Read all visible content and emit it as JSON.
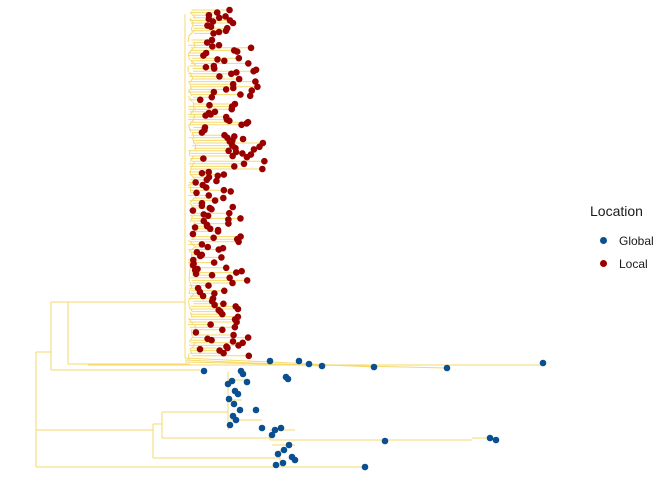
{
  "colors": {
    "branch": "#F5D96A",
    "global": "#0A4F91",
    "local": "#990000"
  },
  "legend": {
    "title": "Location",
    "items": [
      {
        "label": "Global",
        "color": "#0A4F91"
      },
      {
        "label": "Local",
        "color": "#990000"
      }
    ]
  }
}
